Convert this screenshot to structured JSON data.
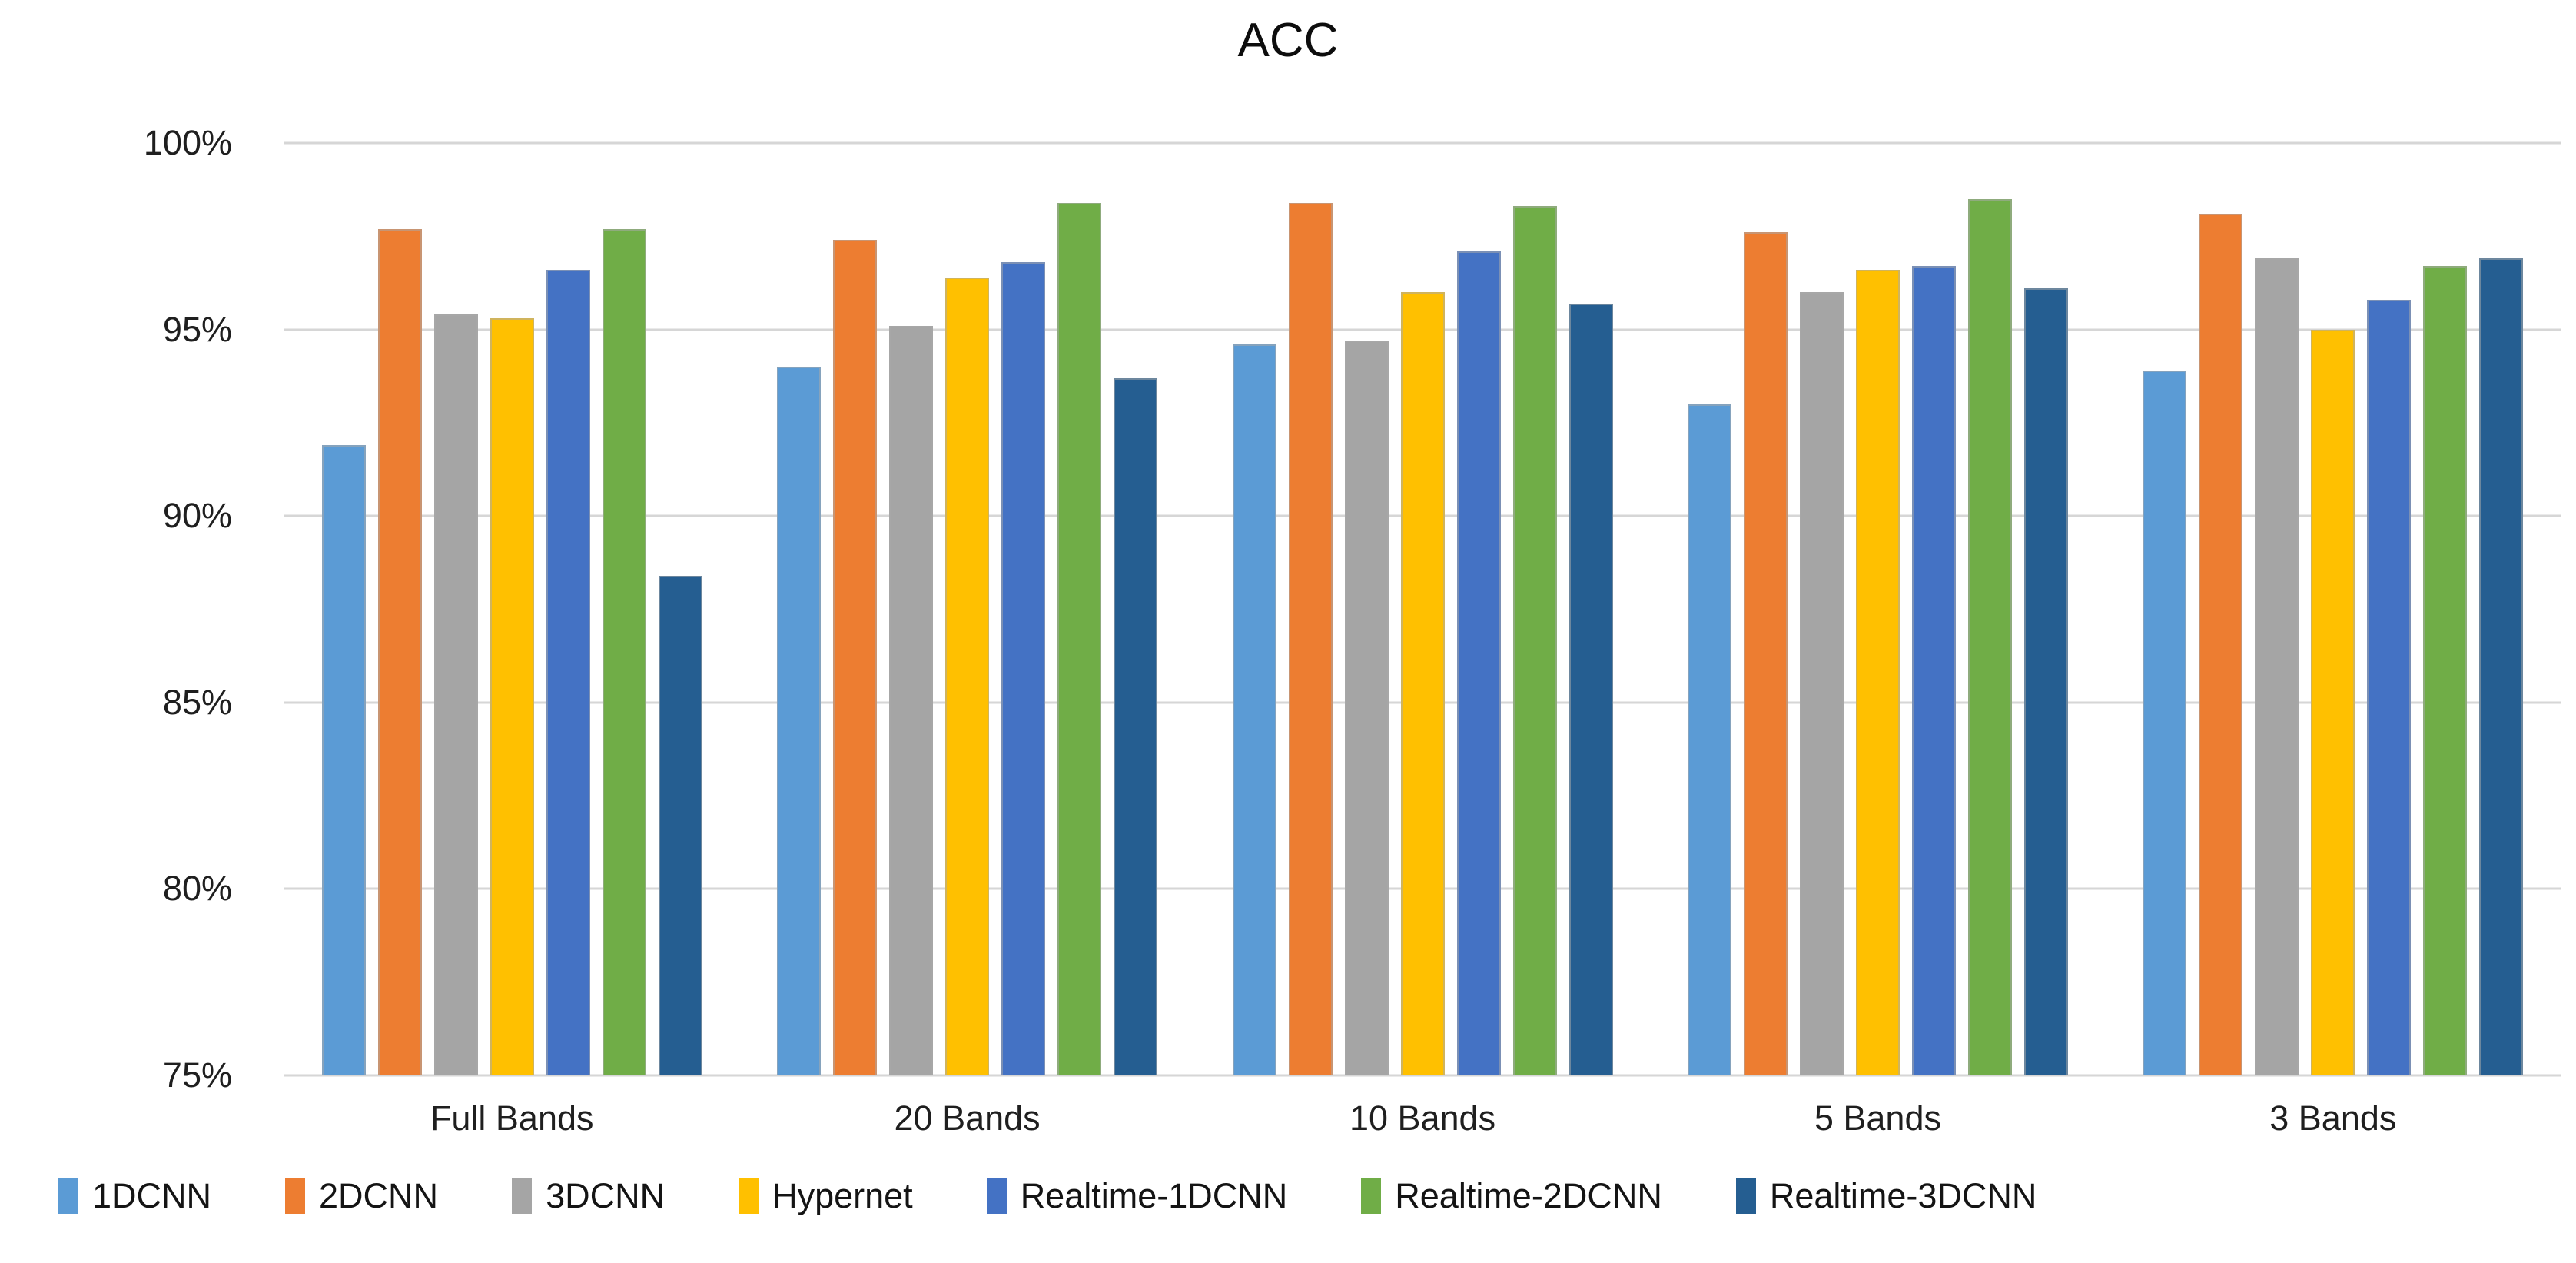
{
  "title": "ACC",
  "chart_data": {
    "type": "bar",
    "title": "ACC",
    "xlabel": "",
    "ylabel": "",
    "categories": [
      "Full Bands",
      "20 Bands",
      "10 Bands",
      "5 Bands",
      "3 Bands"
    ],
    "series": [
      {
        "name": "1DCNN",
        "color": "#5B9BD5",
        "values": [
          91.9,
          94.0,
          94.6,
          93.0,
          93.9
        ]
      },
      {
        "name": "2DCNN",
        "color": "#ED7D31",
        "values": [
          97.7,
          97.4,
          98.4,
          97.6,
          98.1
        ]
      },
      {
        "name": "3DCNN",
        "color": "#A5A5A5",
        "values": [
          95.4,
          95.1,
          94.7,
          96.0,
          96.9
        ]
      },
      {
        "name": "Hypernet",
        "color": "#FFC000",
        "values": [
          95.3,
          96.4,
          96.0,
          96.6,
          95.0
        ]
      },
      {
        "name": "Realtime-1DCNN",
        "color": "#4472C4",
        "values": [
          96.6,
          96.8,
          97.1,
          96.7,
          95.8
        ]
      },
      {
        "name": "Realtime-2DCNN",
        "color": "#70AD47",
        "values": [
          97.7,
          98.4,
          98.3,
          98.5,
          96.7
        ]
      },
      {
        "name": "Realtime-3DCNN",
        "color": "#255E91",
        "values": [
          88.4,
          93.7,
          95.7,
          96.1,
          96.9
        ]
      }
    ],
    "ylim": [
      75,
      100
    ],
    "yticks": [
      100,
      95,
      90,
      85,
      80,
      75
    ],
    "ytick_labels": [
      "100%",
      "95%",
      "90%",
      "85%",
      "80%",
      "75%"
    ],
    "grid": true,
    "gridline_color": "#D6D6D6",
    "legend_position": "bottom-left"
  }
}
